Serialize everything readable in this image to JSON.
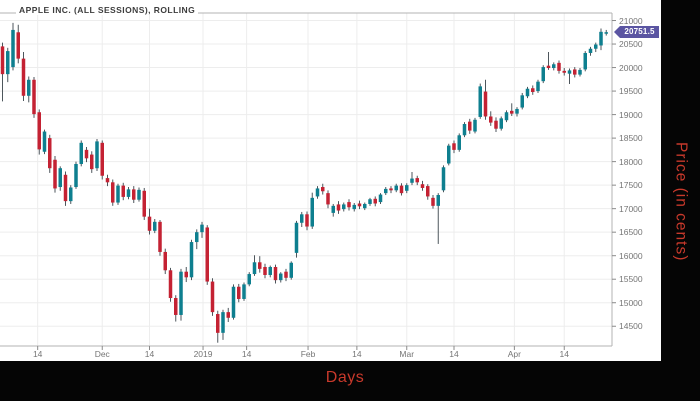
{
  "title": "APPLE INC. (ALL SESSIONS), ROLLING",
  "last_price": {
    "value": "20751.5",
    "badge_color": "#5b55a2"
  },
  "axes": {
    "x_label": "Days",
    "y_label": "Price (in cents)",
    "y_ticks": [
      21000,
      20500,
      20000,
      19500,
      19000,
      18500,
      18000,
      17500,
      17000,
      16500,
      16000,
      15500,
      15000,
      14500
    ],
    "x_ticks": [
      {
        "label": "14",
        "i": 6.7
      },
      {
        "label": "Dec",
        "i": 19
      },
      {
        "label": "14",
        "i": 28
      },
      {
        "label": "2019",
        "i": 38.2
      },
      {
        "label": "14",
        "i": 46.5
      },
      {
        "label": "Feb",
        "i": 58.2
      },
      {
        "label": "14",
        "i": 67.5
      },
      {
        "label": "Mar",
        "i": 77
      },
      {
        "label": "14",
        "i": 86
      },
      {
        "label": "Apr",
        "i": 97.5
      },
      {
        "label": "14",
        "i": 107
      }
    ]
  },
  "colors": {
    "up": "#0e7f8f",
    "down": "#c42233",
    "wick": "#4d565c",
    "grid": "#ededed",
    "border": "#b3b3b3",
    "tick": "#8a8a8a",
    "axis_text": "#757575",
    "red_label": "#c8392b",
    "band": "#050505"
  },
  "chart_data": {
    "type": "candlestick",
    "title": "APPLE INC. (ALL SESSIONS), ROLLING",
    "xlabel": "Days",
    "ylabel": "Price (in cents)",
    "ylim": [
      14080,
      21160
    ],
    "x_range_note": "daily candles, early Nov 2018 to late Apr 2019",
    "last_price": 20751.5,
    "candles": [
      [
        20450,
        20530,
        19280,
        19860
      ],
      [
        19860,
        20420,
        19690,
        20350
      ],
      [
        20010,
        20950,
        19940,
        20800
      ],
      [
        20750,
        20910,
        20090,
        20190
      ],
      [
        20190,
        20330,
        19290,
        19400
      ],
      [
        19400,
        19810,
        19260,
        19740
      ],
      [
        19740,
        19800,
        18930,
        19010
      ],
      [
        19050,
        19110,
        18150,
        18260
      ],
      [
        18210,
        18680,
        18160,
        18640
      ],
      [
        18500,
        18570,
        17760,
        17860
      ],
      [
        18040,
        18120,
        17340,
        17430
      ],
      [
        17460,
        17900,
        17380,
        17860
      ],
      [
        17720,
        17790,
        17060,
        17160
      ],
      [
        17160,
        17500,
        17100,
        17450
      ],
      [
        17460,
        18000,
        17420,
        17950
      ],
      [
        17950,
        18450,
        17900,
        18400
      ],
      [
        18250,
        18310,
        17990,
        18070
      ],
      [
        18150,
        18220,
        17760,
        17840
      ],
      [
        17860,
        18480,
        17800,
        18430
      ],
      [
        18400,
        18450,
        17620,
        17700
      ],
      [
        17650,
        17720,
        17480,
        17560
      ],
      [
        17560,
        17620,
        17060,
        17130
      ],
      [
        17130,
        17530,
        17080,
        17490
      ],
      [
        17490,
        17550,
        17180,
        17250
      ],
      [
        17250,
        17460,
        17200,
        17410
      ],
      [
        17410,
        17480,
        17120,
        17190
      ],
      [
        17190,
        17450,
        17150,
        17400
      ],
      [
        17380,
        17440,
        16760,
        16830
      ],
      [
        16830,
        17000,
        16450,
        16530
      ],
      [
        16530,
        16780,
        16480,
        16720
      ],
      [
        16720,
        16760,
        16000,
        16080
      ],
      [
        16080,
        16150,
        15610,
        15690
      ],
      [
        15690,
        15740,
        15020,
        15100
      ],
      [
        15100,
        15160,
        14600,
        14740
      ],
      [
        14740,
        15720,
        14620,
        15660
      ],
      [
        15660,
        15760,
        15440,
        15540
      ],
      [
        15540,
        16340,
        15480,
        16290
      ],
      [
        16290,
        16560,
        16140,
        16500
      ],
      [
        16500,
        16720,
        16380,
        16660
      ],
      [
        16600,
        16650,
        15380,
        15450
      ],
      [
        15450,
        15520,
        14720,
        14800
      ],
      [
        14760,
        14830,
        14150,
        14360
      ],
      [
        14360,
        14850,
        14210,
        14800
      ],
      [
        14800,
        14890,
        14590,
        14680
      ],
      [
        14680,
        15390,
        14640,
        15340
      ],
      [
        15340,
        15400,
        15010,
        15080
      ],
      [
        15080,
        15430,
        15040,
        15390
      ],
      [
        15390,
        15650,
        15350,
        15610
      ],
      [
        15610,
        16010,
        15570,
        15860
      ],
      [
        15860,
        15990,
        15640,
        15720
      ],
      [
        15760,
        15830,
        15520,
        15590
      ],
      [
        15590,
        15790,
        15540,
        15760
      ],
      [
        15760,
        15810,
        15410,
        15480
      ],
      [
        15480,
        15650,
        15430,
        15620
      ],
      [
        15660,
        15720,
        15460,
        15530
      ],
      [
        15530,
        15880,
        15490,
        15850
      ],
      [
        16060,
        16740,
        15960,
        16700
      ],
      [
        16700,
        16930,
        16610,
        16880
      ],
      [
        16880,
        16940,
        16540,
        16620
      ],
      [
        16620,
        17340,
        16570,
        17230
      ],
      [
        17260,
        17480,
        17210,
        17430
      ],
      [
        17460,
        17530,
        17300,
        17370
      ],
      [
        17330,
        17390,
        17010,
        17090
      ],
      [
        16910,
        17100,
        16830,
        17060
      ],
      [
        17090,
        17160,
        16890,
        16960
      ],
      [
        16990,
        17130,
        16940,
        17090
      ],
      [
        17140,
        17200,
        16960,
        17030
      ],
      [
        16990,
        17120,
        16940,
        17080
      ],
      [
        17110,
        17170,
        16990,
        17050
      ],
      [
        17010,
        17130,
        16970,
        17100
      ],
      [
        17100,
        17230,
        17060,
        17200
      ],
      [
        17210,
        17260,
        17050,
        17110
      ],
      [
        17140,
        17330,
        17100,
        17300
      ],
      [
        17330,
        17460,
        17290,
        17420
      ],
      [
        17430,
        17480,
        17330,
        17390
      ],
      [
        17390,
        17530,
        17350,
        17490
      ],
      [
        17490,
        17540,
        17280,
        17330
      ],
      [
        17380,
        17540,
        17330,
        17500
      ],
      [
        17550,
        17780,
        17500,
        17640
      ],
      [
        17650,
        17700,
        17500,
        17560
      ],
      [
        17520,
        17590,
        17380,
        17440
      ],
      [
        17480,
        17520,
        17190,
        17260
      ],
      [
        17230,
        17290,
        17000,
        17060
      ],
      [
        17060,
        17330,
        16250,
        17290
      ],
      [
        17390,
        17920,
        17350,
        17880
      ],
      [
        17960,
        18380,
        17920,
        18340
      ],
      [
        18390,
        18450,
        18180,
        18250
      ],
      [
        18250,
        18600,
        18210,
        18560
      ],
      [
        18560,
        18840,
        18520,
        18800
      ],
      [
        18850,
        18910,
        18590,
        18660
      ],
      [
        18640,
        18930,
        18600,
        18890
      ],
      [
        18950,
        19660,
        18910,
        19600
      ],
      [
        19490,
        19740,
        18890,
        18960
      ],
      [
        18960,
        19070,
        18760,
        18830
      ],
      [
        18870,
        18940,
        18630,
        18700
      ],
      [
        18700,
        18960,
        18660,
        18920
      ],
      [
        18880,
        19090,
        18840,
        19050
      ],
      [
        19080,
        19240,
        18970,
        19020
      ],
      [
        19020,
        19160,
        18960,
        19120
      ],
      [
        19150,
        19460,
        19110,
        19410
      ],
      [
        19390,
        19590,
        19350,
        19550
      ],
      [
        19560,
        19620,
        19420,
        19480
      ],
      [
        19500,
        19740,
        19460,
        19700
      ],
      [
        19710,
        20050,
        19670,
        20010
      ],
      [
        20040,
        20330,
        19950,
        19990
      ],
      [
        19990,
        20110,
        19940,
        20070
      ],
      [
        20100,
        20150,
        19870,
        19930
      ],
      [
        19930,
        19990,
        19830,
        19890
      ],
      [
        19870,
        19980,
        19650,
        19940
      ],
      [
        19960,
        20010,
        19790,
        19850
      ],
      [
        19850,
        19990,
        19810,
        19950
      ],
      [
        19960,
        20350,
        19920,
        20310
      ],
      [
        20310,
        20440,
        20250,
        20400
      ],
      [
        20400,
        20530,
        20330,
        20490
      ],
      [
        20470,
        20830,
        20370,
        20760
      ],
      [
        20720,
        20800,
        20680,
        20751.5
      ]
    ]
  }
}
